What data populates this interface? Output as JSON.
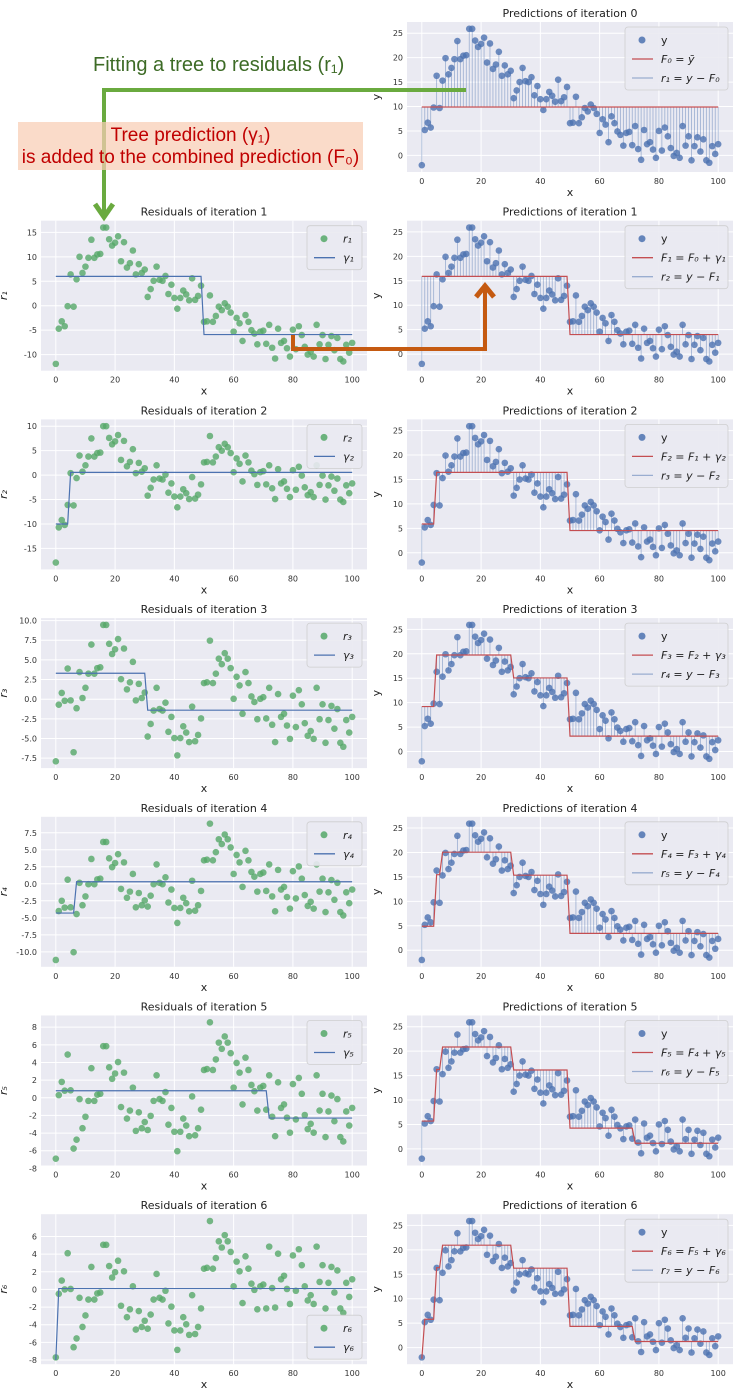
{
  "annotations": {
    "fit_tree": "Fitting a tree to residuals (r₁)",
    "tree_pred_line1": "Tree prediction (γ₁)",
    "tree_pred_line2": "is added to the combined prediction (F₀)",
    "colors": {
      "green": "#6aaa3f",
      "orange": "#c55a11",
      "red_text": "#c00000"
    }
  },
  "chart_data": {
    "type": "scatter",
    "colors": {
      "points": "#4c72b0",
      "residual_points": "#55a868",
      "tree": "#4c72b0",
      "combined": "#c44e52",
      "background": "#eaeaf2",
      "grid": "#ffffff"
    },
    "grid": true,
    "x": [
      0,
      1,
      2,
      3,
      4,
      5,
      6,
      7,
      8,
      9,
      10,
      11,
      12,
      13,
      14,
      15,
      16,
      17,
      18,
      19,
      20,
      21,
      22,
      23,
      24,
      25,
      26,
      27,
      28,
      29,
      30,
      31,
      32,
      33,
      34,
      35,
      36,
      37,
      38,
      39,
      40,
      41,
      42,
      43,
      44,
      45,
      46,
      47,
      48,
      49,
      50,
      51,
      52,
      53,
      54,
      55,
      56,
      57,
      58,
      59,
      60,
      61,
      62,
      63,
      64,
      65,
      66,
      67,
      68,
      69,
      70,
      71,
      72,
      73,
      74,
      75,
      76,
      77,
      78,
      79,
      80,
      81,
      82,
      83,
      84,
      85,
      86,
      87,
      88,
      89,
      90,
      91,
      92,
      93,
      94,
      95,
      96,
      97,
      98,
      99,
      100
    ],
    "y": [
      -2.0,
      5.2,
      6.7,
      5.7,
      9.8,
      16.3,
      9.7,
      15.3,
      19.9,
      16.6,
      17.9,
      19.7,
      23.4,
      19.7,
      20.4,
      20.5,
      25.9,
      25.9,
      23.5,
      22.2,
      22.8,
      24.1,
      19.0,
      22.9,
      17.7,
      18.6,
      21.2,
      16.3,
      18.4,
      16.6,
      17.3,
      11.7,
      13.3,
      15.0,
      17.9,
      15.2,
      15.0,
      16.0,
      12.3,
      14.2,
      11.5,
      9.3,
      11.5,
      13.0,
      12.2,
      11.0,
      15.5,
      11.1,
      11.9,
      14.0,
      6.6,
      6.7,
      12.0,
      6.6,
      7.8,
      9.7,
      9.0,
      10.4,
      9.7,
      8.5,
      4.6,
      7.4,
      6.3,
      2.7,
      8.0,
      6.6,
      4.9,
      4.2,
      2.0,
      4.6,
      4.8,
      2.1,
      6.0,
      1.3,
      -0.9,
      5.2,
      2.3,
      2.7,
      1.2,
      -0.5,
      5.0,
      1.0,
      5.7,
      3.9,
      1.5,
      -0.1,
      0.5,
      -0.5,
      6.0,
      2.0,
      3.9,
      -1.0,
      1.9,
      3.7,
      0.8,
      3.3,
      -1.0,
      -1.5,
      1.9,
      0.3,
      2.3
    ],
    "F0": 9.9,
    "xlim": [
      -5,
      105
    ],
    "x_ticks": [
      "0",
      "20",
      "40",
      "60",
      "80",
      "100"
    ],
    "trees": [
      {
        "split_x_le": 49,
        "left": 6.0,
        "right": -5.9
      },
      {
        "split_x_le": 4,
        "left": -10.0,
        "right": 0.55
      },
      {
        "split_x_le": 30,
        "left": 3.3,
        "right": -1.4
      },
      {
        "split_x_le": 6,
        "left": -4.3,
        "right": 0.3
      },
      {
        "split_x_le": 71,
        "left": 0.8,
        "right": -2.3
      },
      {
        "split_x_le": 0,
        "left": -8.0,
        "right": 0.1
      }
    ],
    "predictions": [
      {
        "title": "Predictions of iteration 0",
        "xlabel": "x",
        "ylabel": "y",
        "y_ticks": [
          "0",
          "5",
          "10",
          "15",
          "20",
          "25"
        ],
        "legend": [
          "y",
          "F₀ = ȳ",
          "r₁ = y − F₀"
        ],
        "legend_placement": "top-right"
      },
      {
        "title": "Predictions of iteration 1",
        "xlabel": "x",
        "ylabel": "y",
        "y_ticks": [
          "0",
          "5",
          "10",
          "15",
          "20",
          "25"
        ],
        "legend": [
          "y",
          "F₁ = F₀ + γ₁",
          "r₂ = y − F₁"
        ],
        "legend_placement": "top-right"
      },
      {
        "title": "Predictions of iteration 2",
        "xlabel": "x",
        "ylabel": "y",
        "y_ticks": [
          "0",
          "5",
          "10",
          "15",
          "20",
          "25"
        ],
        "legend": [
          "y",
          "F₂ = F₁ + γ₂",
          "r₃ = y − F₂"
        ],
        "legend_placement": "top-right"
      },
      {
        "title": "Predictions of iteration 3",
        "xlabel": "x",
        "ylabel": "y",
        "y_ticks": [
          "0",
          "5",
          "10",
          "15",
          "20",
          "25"
        ],
        "legend": [
          "y",
          "F₃ = F₂ + γ₃",
          "r₄ = y − F₃"
        ],
        "legend_placement": "top-right"
      },
      {
        "title": "Predictions of iteration 4",
        "xlabel": "x",
        "ylabel": "y",
        "y_ticks": [
          "0",
          "5",
          "10",
          "15",
          "20",
          "25"
        ],
        "legend": [
          "y",
          "F₄ = F₃ + γ₄",
          "r₅ = y − F₄"
        ],
        "legend_placement": "top-right"
      },
      {
        "title": "Predictions of iteration 5",
        "xlabel": "x",
        "ylabel": "y",
        "y_ticks": [
          "0",
          "5",
          "10",
          "15",
          "20",
          "25"
        ],
        "legend": [
          "y",
          "F₅ = F₄ + γ₅",
          "r₆ = y − F₅"
        ],
        "legend_placement": "top-right"
      },
      {
        "title": "Predictions of iteration 6",
        "xlabel": "x",
        "ylabel": "y",
        "y_ticks": [
          "0",
          "5",
          "10",
          "15",
          "20",
          "25"
        ],
        "legend": [
          "y",
          "F₆ = F₅ + γ₆",
          "r₇ = y − F₆"
        ],
        "legend_placement": "top-right"
      }
    ],
    "residuals": [
      {
        "title": "Residuals of iteration 1",
        "xlabel": "x",
        "ylabel": "r₁",
        "y_ticks": [
          "-10",
          "-5",
          "0",
          "5",
          "10",
          "15"
        ],
        "legend": [
          "r₁",
          "γ₁"
        ],
        "legend_placement": "top-right"
      },
      {
        "title": "Residuals of iteration 2",
        "xlabel": "x",
        "ylabel": "r₂",
        "y_ticks": [
          "-15",
          "-10",
          "-5",
          "0",
          "5",
          "10"
        ],
        "legend": [
          "r₂",
          "γ₂"
        ],
        "legend_placement": "top-right"
      },
      {
        "title": "Residuals of iteration 3",
        "xlabel": "x",
        "ylabel": "r₃",
        "y_ticks": [
          "-7.5",
          "-5.0",
          "-2.5",
          "0.0",
          "2.5",
          "5.0",
          "7.5",
          "10.0"
        ],
        "legend": [
          "r₃",
          "γ₃"
        ],
        "legend_placement": "top-right"
      },
      {
        "title": "Residuals of iteration 4",
        "xlabel": "x",
        "ylabel": "r₄",
        "y_ticks": [
          "-10.0",
          "-7.5",
          "-5.0",
          "-2.5",
          "0.0",
          "2.5",
          "5.0",
          "7.5"
        ],
        "legend": [
          "r₄",
          "γ₄"
        ],
        "legend_placement": "top-right"
      },
      {
        "title": "Residuals of iteration 5",
        "xlabel": "x",
        "ylabel": "r₅",
        "y_ticks": [
          "-8",
          "-6",
          "-4",
          "-2",
          "0",
          "2",
          "4",
          "6",
          "8"
        ],
        "legend": [
          "r₅",
          "γ₅"
        ],
        "legend_placement": "top-right"
      },
      {
        "title": "Residuals of iteration 6",
        "xlabel": "x",
        "ylabel": "r₆",
        "y_ticks": [
          "-8",
          "-6",
          "-4",
          "-2",
          "0",
          "2",
          "4",
          "6"
        ],
        "legend": [
          "r₆",
          "γ₆"
        ],
        "legend_placement": "bottom-right"
      }
    ]
  }
}
